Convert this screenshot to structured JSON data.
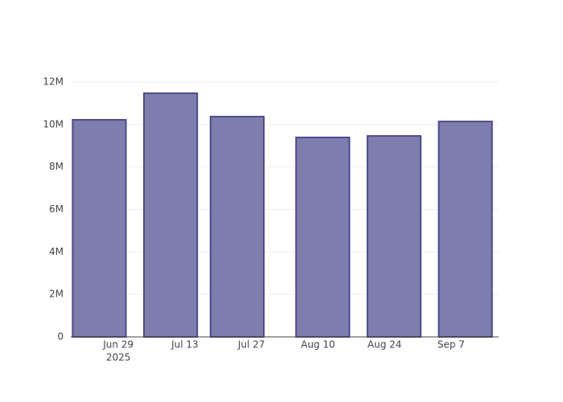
{
  "chart_data": {
    "type": "bar",
    "x": [
      "2025-06-25",
      "2025-07-10",
      "2025-07-24",
      "2025-08-11",
      "2025-08-26",
      "2025-09-10"
    ],
    "values": [
      10220000,
      11470000,
      10370000,
      9390000,
      9460000,
      10140000
    ],
    "color": "#7e7eae",
    "line_color": "#4b4b8b",
    "xlim": [
      "2025-06-19",
      "2025-09-17"
    ],
    "xticks": [
      {
        "value": "2025-06-29",
        "label": "Jun 29"
      },
      {
        "value": "2025-07-13",
        "label": "Jul 13"
      },
      {
        "value": "2025-07-27",
        "label": "Jul 27"
      },
      {
        "value": "2025-08-10",
        "label": "Aug 10"
      },
      {
        "value": "2025-08-24",
        "label": "Aug 24"
      },
      {
        "value": "2025-09-07",
        "label": "Sep 7"
      }
    ],
    "xtick_year": {
      "value": "2025-06-29",
      "label": "2025"
    },
    "ylim": [
      0,
      12000000
    ],
    "yticks": [
      0,
      {
        "value": 2000000,
        "label": "2M"
      },
      {
        "value": 4000000,
        "label": "4M"
      },
      {
        "value": 6000000,
        "label": "6M"
      },
      {
        "value": 8000000,
        "label": "8M"
      },
      {
        "value": 10000000,
        "label": "10M"
      },
      {
        "value": 12000000,
        "label": "12M"
      }
    ],
    "grid": true
  }
}
